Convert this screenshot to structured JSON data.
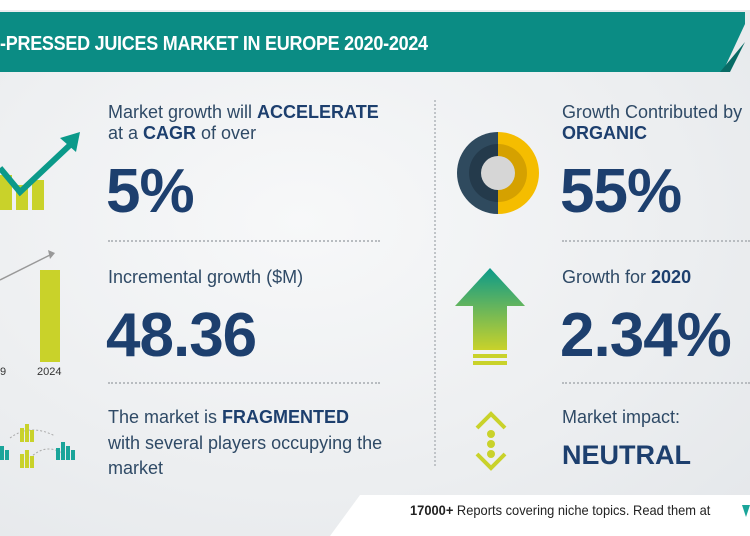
{
  "title": "-PRESSED JUICES MARKET IN EUROPE 2020-2024",
  "cagr": {
    "line1_prefix": "Market growth will ",
    "line1_bold": "ACCELERATE",
    "line2_prefix": "at a ",
    "line2_bold": "CAGR",
    "line2_suffix": " of over",
    "value": "5%"
  },
  "incremental": {
    "label": "Incremental growth ($M)",
    "value": "48.36",
    "chart_labels": [
      "9",
      "2024"
    ]
  },
  "market": {
    "prefix": "The market is ",
    "bold": "FRAGMENTED",
    "line2": "with several players occupying the",
    "line3": "market"
  },
  "contribution": {
    "line1": "Growth Contributed by",
    "segment": "ORGANIC",
    "value": "55%"
  },
  "yoy": {
    "prefix": "Growth for ",
    "year": "2020",
    "value": "2.34%"
  },
  "impact": {
    "label": "Market impact:",
    "value": "NEUTRAL"
  },
  "footer": {
    "bold": "17000+",
    "text": " Reports covering niche topics. Read them at"
  },
  "colors": {
    "teal": "#0b8c84",
    "navy": "#1d3f6e",
    "yellow": "#f5bd00",
    "lime": "#c9d22a"
  },
  "icons": [
    "growth-chart-icon",
    "bar-chart-icon",
    "fragmented-market-icon",
    "donut-chart-icon",
    "up-arrow-icon",
    "neutral-impact-icon",
    "brand-logo-icon"
  ]
}
